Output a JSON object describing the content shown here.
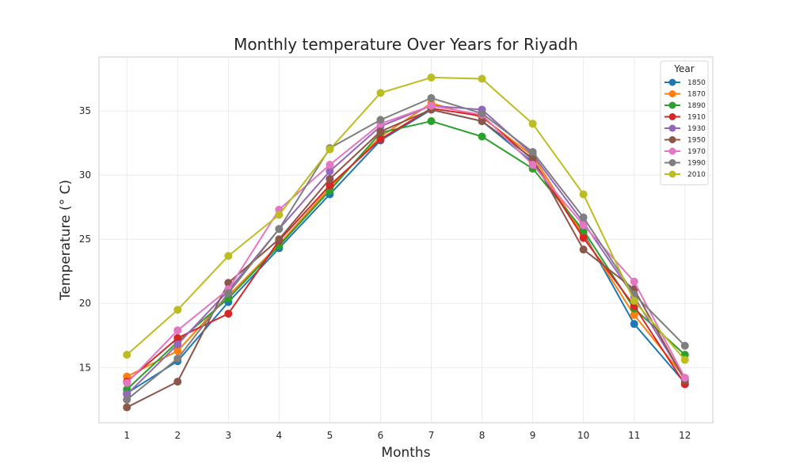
{
  "chart_data": {
    "type": "line",
    "title": "Monthly temperature Over Years for Riyadh",
    "xlabel": "Months",
    "ylabel": "Temperature (° C)",
    "x": [
      1,
      2,
      3,
      4,
      5,
      6,
      7,
      8,
      9,
      10,
      11,
      12
    ],
    "xlim": [
      0.45,
      12.55
    ],
    "ylim": [
      10.7,
      39.2
    ],
    "yticks": [
      15,
      20,
      25,
      30,
      35
    ],
    "grid": true,
    "legend": {
      "title": "Year",
      "placement": "top-right"
    },
    "series": [
      {
        "name": "1850",
        "color": "#1f77b4",
        "values": [
          13.0,
          15.5,
          20.1,
          24.3,
          28.5,
          32.7,
          35.1,
          34.2,
          31.0,
          25.5,
          18.4,
          13.8
        ]
      },
      {
        "name": "1870",
        "color": "#ff7f0e",
        "values": [
          14.3,
          16.3,
          20.6,
          24.6,
          29.0,
          33.0,
          35.6,
          34.5,
          31.5,
          25.3,
          19.1,
          14.2
        ]
      },
      {
        "name": "1890",
        "color": "#2ca02c",
        "values": [
          13.3,
          17.0,
          20.4,
          24.5,
          28.8,
          33.3,
          34.2,
          33.0,
          30.5,
          25.7,
          19.6,
          16.0
        ]
      },
      {
        "name": "1910",
        "color": "#d62728",
        "values": [
          13.9,
          17.3,
          19.2,
          24.9,
          29.2,
          32.8,
          35.2,
          34.6,
          31.2,
          25.1,
          19.8,
          13.7
        ]
      },
      {
        "name": "1930",
        "color": "#9467bd",
        "values": [
          12.9,
          16.8,
          21.0,
          25.8,
          30.3,
          33.8,
          35.4,
          35.1,
          31.6,
          26.3,
          20.5,
          14.1
        ]
      },
      {
        "name": "1950",
        "color": "#8c564b",
        "values": [
          11.9,
          13.9,
          21.6,
          25.0,
          29.7,
          33.4,
          35.1,
          34.2,
          31.3,
          24.2,
          21.1,
          14.0
        ]
      },
      {
        "name": "1970",
        "color": "#e377c2",
        "values": [
          13.8,
          17.9,
          21.1,
          27.3,
          30.8,
          34.0,
          35.4,
          34.7,
          30.8,
          26.1,
          21.7,
          14.2
        ]
      },
      {
        "name": "1990",
        "color": "#7f7f7f",
        "values": [
          12.5,
          15.7,
          20.8,
          25.8,
          32.1,
          34.3,
          36.0,
          34.8,
          31.8,
          26.7,
          20.7,
          16.7
        ]
      },
      {
        "name": "2010",
        "color": "#bcbd22",
        "values": [
          16.0,
          19.5,
          23.7,
          26.9,
          32.0,
          36.4,
          37.6,
          37.5,
          34.0,
          28.5,
          20.2,
          15.6
        ]
      }
    ]
  }
}
